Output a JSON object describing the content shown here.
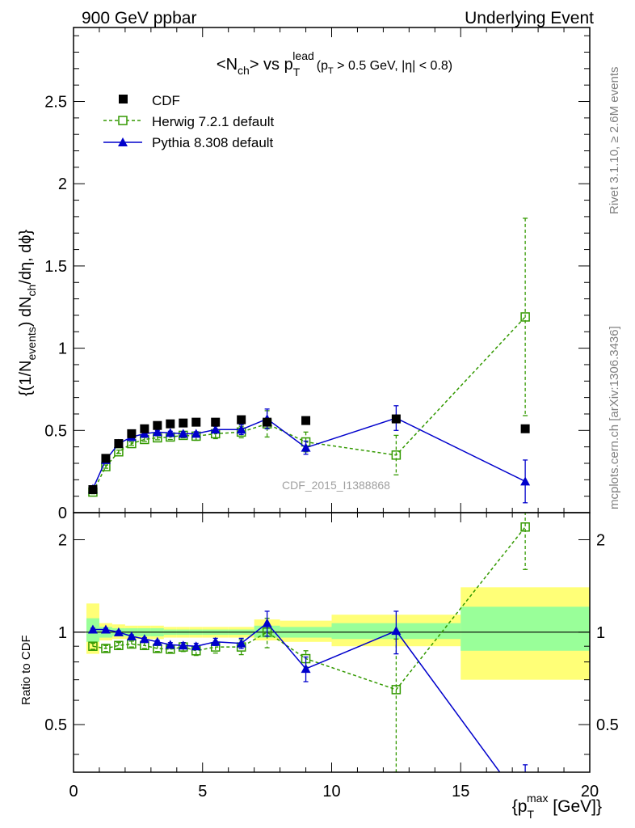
{
  "header": {
    "left": "900 GeV ppbar",
    "right": "Underlying Event"
  },
  "side_labels": {
    "rivet": "Rivet 3.1.10, ≥ 2.6M events",
    "mcplots": "mcplots.cern.ch [arXiv:1306.3436]"
  },
  "watermark": "CDF_2015_I1388868",
  "chart_data": [
    {
      "type": "scatter",
      "panel": "main",
      "title": {
        "pre": "<N",
        "sub1": "ch",
        "mid": "> vs p",
        "sub2": "T",
        "sup2": "lead",
        "cut": "(p",
        "cut_sub": "T",
        "cut_rest": " > 0.5 GeV, |η| < 0.8)"
      },
      "ylabel": "{(1/N_events) dN_ch/dη, dϕ}",
      "ylabel_parts": {
        "a": "{(1/N",
        "a_sub": "events",
        "b": ") dN",
        "b_sub": "ch",
        "c": "/dη, dϕ}"
      },
      "xlim": [
        0,
        20
      ],
      "ylim": [
        0,
        2.95
      ],
      "yticks": [
        "0",
        "0.5",
        "1",
        "1.5",
        "2",
        "2.5"
      ],
      "yticks_values": [
        0,
        0.5,
        1,
        1.5,
        2,
        2.5
      ],
      "legend_position": "top-left",
      "series": [
        {
          "name": "CDF",
          "color": "#000000",
          "marker": "square",
          "line": "none",
          "x": [
            0.75,
            1.25,
            1.75,
            2.25,
            2.75,
            3.25,
            3.75,
            4.25,
            4.75,
            5.5,
            6.5,
            7.5,
            9.0,
            12.5,
            17.5
          ],
          "y": [
            0.14,
            0.33,
            0.42,
            0.48,
            0.51,
            0.53,
            0.54,
            0.545,
            0.55,
            0.55,
            0.565,
            0.55,
            0.56,
            0.57,
            0.51
          ],
          "err": [
            0,
            0,
            0,
            0,
            0,
            0,
            0,
            0,
            0,
            0,
            0,
            0,
            0,
            0,
            0
          ]
        },
        {
          "name": "Herwig 7.2.1 default",
          "color": "#339900",
          "marker": "open-square",
          "line": "dashed",
          "x": [
            0.75,
            1.25,
            1.75,
            2.25,
            2.75,
            3.25,
            3.75,
            4.25,
            4.75,
            5.5,
            6.5,
            7.5,
            9.0,
            12.5,
            17.5
          ],
          "y": [
            0.125,
            0.28,
            0.37,
            0.42,
            0.445,
            0.455,
            0.46,
            0.47,
            0.465,
            0.48,
            0.49,
            0.54,
            0.43,
            0.35,
            1.19
          ],
          "err": [
            0.01,
            0.01,
            0.01,
            0.01,
            0.012,
            0.012,
            0.015,
            0.015,
            0.025,
            0.03,
            0.035,
            0.08,
            0.06,
            0.12,
            0.6
          ]
        },
        {
          "name": "Pythia 8.308 default",
          "color": "#0000cc",
          "marker": "triangle",
          "line": "solid",
          "x": [
            0.75,
            1.25,
            1.75,
            2.25,
            2.75,
            3.25,
            3.75,
            4.25,
            4.75,
            5.5,
            6.5,
            7.5,
            9.0,
            12.5,
            17.5
          ],
          "y": [
            0.145,
            0.32,
            0.42,
            0.46,
            0.48,
            0.49,
            0.485,
            0.48,
            0.48,
            0.505,
            0.505,
            0.57,
            0.395,
            0.575,
            0.19
          ],
          "err": [
            0.01,
            0.01,
            0.01,
            0.01,
            0.01,
            0.01,
            0.01,
            0.012,
            0.012,
            0.02,
            0.03,
            0.06,
            0.04,
            0.075,
            0.13
          ]
        }
      ]
    },
    {
      "type": "scatter",
      "panel": "ratio",
      "ylabel": "Ratio to CDF",
      "xlabel": "{p_T^max [GeV]}",
      "xlabel_parts": {
        "a": "{p",
        "sub": "T",
        "sup": "max",
        "b": " [GeV]}"
      },
      "xlim": [
        0,
        20
      ],
      "ylim": [
        0.35,
        2.45
      ],
      "xticks": [
        "0",
        "5",
        "10",
        "15",
        "20"
      ],
      "xticks_values": [
        0,
        5,
        10,
        15,
        20
      ],
      "yticks": [
        "0.5",
        "1",
        "2"
      ],
      "yticks_values": [
        0.5,
        1,
        2
      ],
      "bands": {
        "edges": [
          0.5,
          1.0,
          1.5,
          2.0,
          2.5,
          3.0,
          3.5,
          4.0,
          4.5,
          5.0,
          6.0,
          7.0,
          8.0,
          10.0,
          15.0,
          20.0
        ],
        "yellow": [
          [
            0.85,
            1.24
          ],
          [
            0.94,
            1.07
          ],
          [
            0.95,
            1.06
          ],
          [
            0.95,
            1.05
          ],
          [
            0.95,
            1.05
          ],
          [
            0.95,
            1.05
          ],
          [
            0.96,
            1.04
          ],
          [
            0.96,
            1.04
          ],
          [
            0.96,
            1.04
          ],
          [
            0.96,
            1.04
          ],
          [
            0.96,
            1.04
          ],
          [
            0.94,
            1.1
          ],
          [
            0.93,
            1.09
          ],
          [
            0.9,
            1.14
          ],
          [
            0.7,
            1.4
          ]
        ],
        "green": [
          [
            0.93,
            1.11
          ],
          [
            0.96,
            1.04
          ],
          [
            0.97,
            1.03
          ],
          [
            0.97,
            1.03
          ],
          [
            0.97,
            1.03
          ],
          [
            0.97,
            1.03
          ],
          [
            0.98,
            1.02
          ],
          [
            0.98,
            1.02
          ],
          [
            0.98,
            1.02
          ],
          [
            0.98,
            1.02
          ],
          [
            0.98,
            1.02
          ],
          [
            0.96,
            1.05
          ],
          [
            0.96,
            1.04
          ],
          [
            0.95,
            1.07
          ],
          [
            0.87,
            1.21
          ]
        ]
      },
      "series": [
        {
          "name": "Herwig 7.2.1 default",
          "color": "#339900",
          "marker": "open-square",
          "line": "dashed",
          "x": [
            0.75,
            1.25,
            1.75,
            2.25,
            2.75,
            3.25,
            3.75,
            4.25,
            4.75,
            5.5,
            6.5,
            7.5,
            9.0,
            12.5,
            17.5
          ],
          "y": [
            0.9,
            0.885,
            0.905,
            0.915,
            0.905,
            0.885,
            0.88,
            0.895,
            0.87,
            0.895,
            0.895,
            1.0,
            0.82,
            0.65,
            2.2
          ],
          "err": [
            0.02,
            0.02,
            0.02,
            0.02,
            0.02,
            0.02,
            0.02,
            0.03,
            0.03,
            0.04,
            0.05,
            0.11,
            0.05,
            0.3,
            0.6
          ]
        },
        {
          "name": "Pythia 8.308 default",
          "color": "#0000cc",
          "marker": "triangle",
          "line": "solid",
          "x": [
            0.75,
            1.25,
            1.75,
            2.25,
            2.75,
            3.25,
            3.75,
            4.25,
            4.75,
            5.5,
            6.5,
            7.5,
            9.0,
            12.5,
            17.5
          ],
          "y": [
            1.02,
            1.02,
            1.0,
            0.97,
            0.95,
            0.93,
            0.91,
            0.905,
            0.9,
            0.93,
            0.92,
            1.07,
            0.76,
            1.01,
            0.27
          ],
          "err": [
            0.01,
            0.01,
            0.01,
            0.01,
            0.01,
            0.01,
            0.015,
            0.02,
            0.02,
            0.025,
            0.035,
            0.1,
            0.07,
            0.16,
            0.1
          ]
        }
      ]
    }
  ]
}
